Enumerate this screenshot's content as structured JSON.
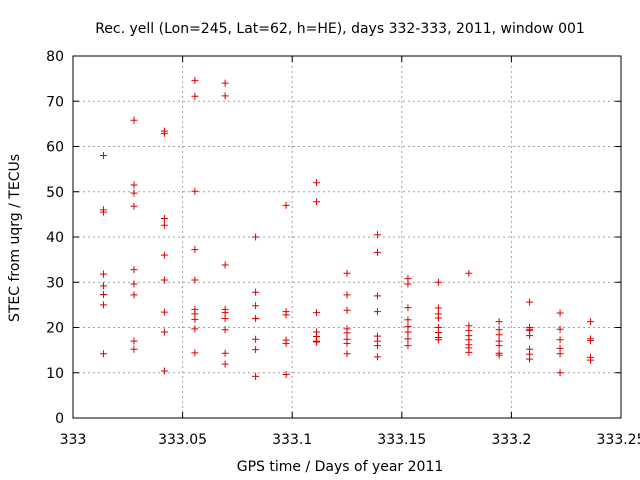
{
  "chart_data": {
    "type": "scatter",
    "title": "Rec. yell (Lon=245, Lat=62, h=HE), days 332-333, 2011, window 001",
    "xlabel": "GPS time / Days of year 2011",
    "ylabel": "STEC from uqrg / TECUs",
    "xlim": [
      333,
      333.25
    ],
    "ylim": [
      0,
      80
    ],
    "xticks": [
      "333",
      "333.05",
      "333.1",
      "333.15",
      "333.2",
      "333.25"
    ],
    "yticks": [
      "0",
      "10",
      "20",
      "30",
      "40",
      "50",
      "60",
      "70",
      "80"
    ],
    "grid": true,
    "marker": "+",
    "color": "#dd0000",
    "series": [
      {
        "name": "STEC",
        "points": [
          [
            333.0139,
            58
          ],
          [
            333.0139,
            46
          ],
          [
            333.0139,
            45.5
          ],
          [
            333.0139,
            31.8
          ],
          [
            333.0139,
            29.2
          ],
          [
            333.0139,
            27.3
          ],
          [
            333.0139,
            25
          ],
          [
            333.0139,
            14.2
          ],
          [
            333.0278,
            65.8
          ],
          [
            333.0278,
            51.5
          ],
          [
            333.0278,
            49.7
          ],
          [
            333.0278,
            46.8
          ],
          [
            333.0278,
            32.8
          ],
          [
            333.0278,
            29.6
          ],
          [
            333.0278,
            27.2
          ],
          [
            333.0278,
            17
          ],
          [
            333.0278,
            15.2
          ],
          [
            333.0417,
            63.4
          ],
          [
            333.0417,
            62.9
          ],
          [
            333.0417,
            44.1
          ],
          [
            333.0417,
            42.6
          ],
          [
            333.0417,
            36
          ],
          [
            333.0417,
            30.5
          ],
          [
            333.0417,
            23.4
          ],
          [
            333.0417,
            19
          ],
          [
            333.0417,
            10.4
          ],
          [
            333.0556,
            74.6
          ],
          [
            333.0556,
            71.1
          ],
          [
            333.0556,
            50.1
          ],
          [
            333.0556,
            37.2
          ],
          [
            333.0556,
            30.5
          ],
          [
            333.0556,
            24
          ],
          [
            333.0556,
            23
          ],
          [
            333.0556,
            21.8
          ],
          [
            333.0556,
            19.7
          ],
          [
            333.0556,
            14.4
          ],
          [
            333.0694,
            74
          ],
          [
            333.0694,
            71.2
          ],
          [
            333.0694,
            33.8
          ],
          [
            333.0694,
            24
          ],
          [
            333.0694,
            23.3
          ],
          [
            333.0694,
            22
          ],
          [
            333.0694,
            19.5
          ],
          [
            333.0694,
            14.3
          ],
          [
            333.0694,
            11.9
          ],
          [
            333.0833,
            40
          ],
          [
            333.0833,
            27.8
          ],
          [
            333.0833,
            24.8
          ],
          [
            333.0833,
            22
          ],
          [
            333.0833,
            17.4
          ],
          [
            333.0833,
            15.1
          ],
          [
            333.0833,
            9.2
          ],
          [
            333.0972,
            47
          ],
          [
            333.0972,
            23.5
          ],
          [
            333.0972,
            22.8
          ],
          [
            333.0972,
            17.2
          ],
          [
            333.0972,
            16.5
          ],
          [
            333.0972,
            9.6
          ],
          [
            333.1111,
            52
          ],
          [
            333.1111,
            47.8
          ],
          [
            333.1111,
            23.3
          ],
          [
            333.1111,
            19
          ],
          [
            333.1111,
            18
          ],
          [
            333.1111,
            17
          ],
          [
            333.1111,
            16.8
          ],
          [
            333.125,
            32
          ],
          [
            333.125,
            27.2
          ],
          [
            333.125,
            23.8
          ],
          [
            333.125,
            19.7
          ],
          [
            333.125,
            18.8
          ],
          [
            333.125,
            17.4
          ],
          [
            333.125,
            16.5
          ],
          [
            333.125,
            14.2
          ],
          [
            333.1389,
            40.5
          ],
          [
            333.1389,
            36.6
          ],
          [
            333.1389,
            27
          ],
          [
            333.1389,
            23.5
          ],
          [
            333.1389,
            18.1
          ],
          [
            333.1389,
            17
          ],
          [
            333.1389,
            16
          ],
          [
            333.1389,
            13.5
          ],
          [
            333.1528,
            30.8
          ],
          [
            333.1528,
            29.6
          ],
          [
            333.1528,
            24.4
          ],
          [
            333.1528,
            21.7
          ],
          [
            333.1528,
            20.2
          ],
          [
            333.1528,
            19
          ],
          [
            333.1528,
            17.5
          ],
          [
            333.1528,
            16
          ],
          [
            333.1667,
            30
          ],
          [
            333.1667,
            24.3
          ],
          [
            333.1667,
            23
          ],
          [
            333.1667,
            22.1
          ],
          [
            333.1667,
            20
          ],
          [
            333.1667,
            18.9
          ],
          [
            333.1667,
            17.8
          ],
          [
            333.1667,
            17.3
          ],
          [
            333.1806,
            32
          ],
          [
            333.1806,
            20.4
          ],
          [
            333.1806,
            19.3
          ],
          [
            333.1806,
            18.2
          ],
          [
            333.1806,
            17.3
          ],
          [
            333.1806,
            16.2
          ],
          [
            333.1806,
            15.5
          ],
          [
            333.1806,
            14.5
          ],
          [
            333.1944,
            21.3
          ],
          [
            333.1944,
            19.5
          ],
          [
            333.1944,
            18.4
          ],
          [
            333.1944,
            17
          ],
          [
            333.1944,
            16
          ],
          [
            333.1944,
            14.3
          ],
          [
            333.1944,
            13.9
          ],
          [
            333.2083,
            25.6
          ],
          [
            333.2083,
            20
          ],
          [
            333.2083,
            19.6
          ],
          [
            333.2083,
            19.3
          ],
          [
            333.2083,
            18.2
          ],
          [
            333.2083,
            15.2
          ],
          [
            333.2083,
            14.1
          ],
          [
            333.2083,
            13
          ],
          [
            333.2222,
            23.2
          ],
          [
            333.2222,
            19.6
          ],
          [
            333.2222,
            17.3
          ],
          [
            333.2222,
            15.4
          ],
          [
            333.2222,
            14.2
          ],
          [
            333.2222,
            10
          ],
          [
            333.2361,
            21.3
          ],
          [
            333.2361,
            17.5
          ],
          [
            333.2361,
            17.1
          ],
          [
            333.2361,
            13.4
          ],
          [
            333.2361,
            12.8
          ]
        ]
      }
    ]
  }
}
